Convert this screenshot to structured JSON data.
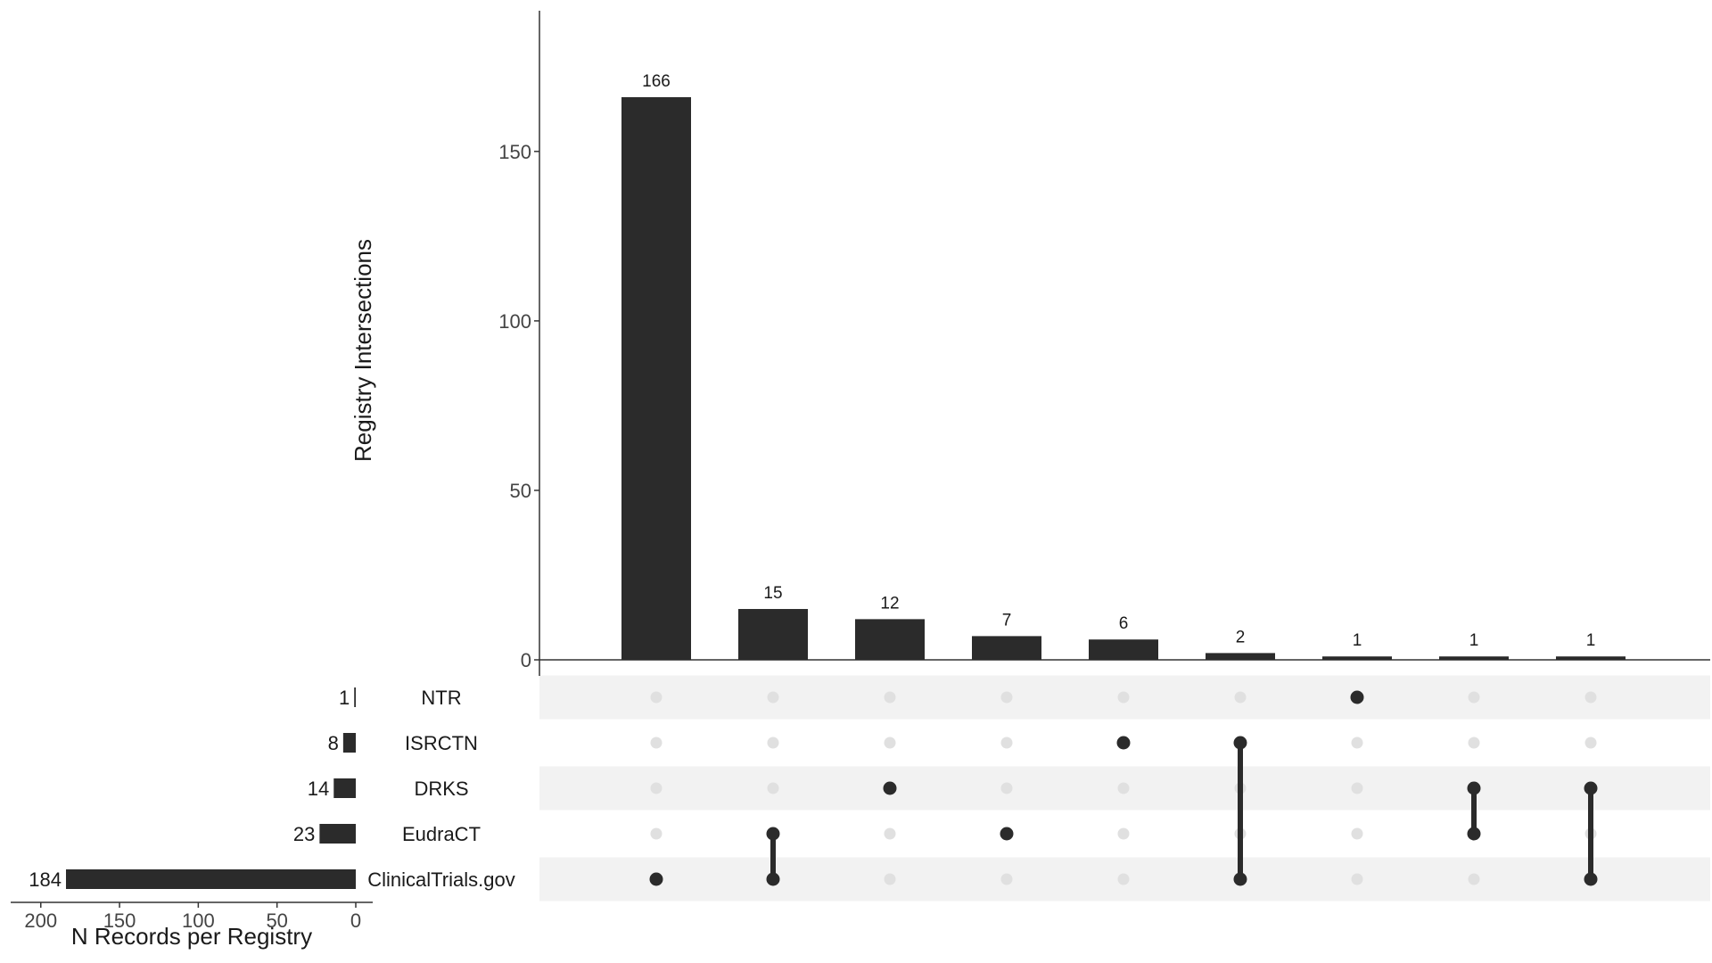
{
  "chart_data": {
    "type": "bar",
    "subtype": "upset",
    "intersections": {
      "ylabel": "Registry Intersections",
      "yticks": [
        0,
        50,
        100,
        150
      ],
      "ylim": [
        0,
        190
      ],
      "values": [
        166,
        15,
        12,
        7,
        6,
        2,
        1,
        1,
        1
      ],
      "labels": [
        "166",
        "15",
        "12",
        "7",
        "6",
        "2",
        "1",
        "1",
        "1"
      ],
      "memberships": [
        [
          "ClinicalTrials.gov"
        ],
        [
          "EudraCT",
          "ClinicalTrials.gov"
        ],
        [
          "DRKS"
        ],
        [
          "EudraCT"
        ],
        [
          "ISRCTN"
        ],
        [
          "ISRCTN",
          "ClinicalTrials.gov"
        ],
        [
          "NTR"
        ],
        [
          "DRKS",
          "EudraCT"
        ],
        [
          "DRKS",
          "ClinicalTrials.gov"
        ]
      ]
    },
    "sets": {
      "xlabel": "N Records per Registry",
      "xticks": [
        200,
        150,
        100,
        50,
        0
      ],
      "xlim": [
        0,
        225
      ],
      "categories": [
        "NTR",
        "ISRCTN",
        "DRKS",
        "EudraCT",
        "ClinicalTrials.gov"
      ],
      "values": [
        1,
        8,
        14,
        23,
        184
      ],
      "labels": [
        "1",
        "8",
        "14",
        "23",
        "184"
      ]
    },
    "colors": {
      "bar": "#2b2b2b",
      "dot_active": "#2b2b2b",
      "dot_inactive": "#e0e0e0",
      "stripe": "#f2f2f2",
      "axis": "#333333",
      "text": "#1a1a1a",
      "tick_text": "#444444"
    },
    "grid": false,
    "legend": "none"
  }
}
